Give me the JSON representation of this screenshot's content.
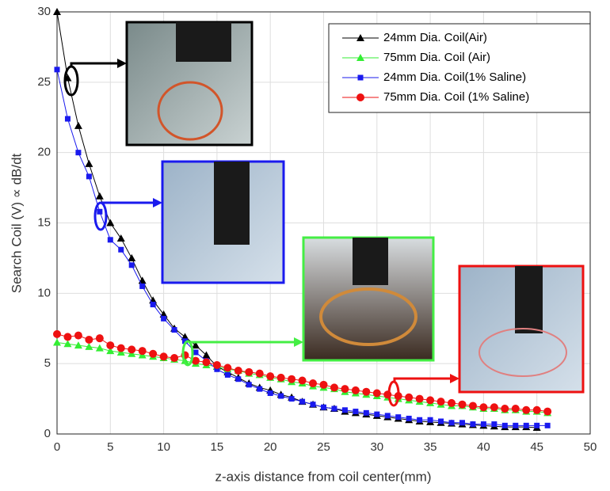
{
  "chart_data": {
    "type": "line",
    "xlabel": "z-axis distance from coil center(mm)",
    "ylabel": "Search Coil (V) ∝ dB/dt",
    "x": [
      0,
      1,
      2,
      3,
      4,
      5,
      6,
      7,
      8,
      9,
      10,
      11,
      12,
      13,
      14,
      15,
      16,
      17,
      18,
      19,
      20,
      21,
      22,
      23,
      24,
      25,
      26,
      27,
      28,
      29,
      30,
      31,
      32,
      33,
      34,
      35,
      36,
      37,
      38,
      39,
      40,
      41,
      42,
      43,
      44,
      45,
      46
    ],
    "series": [
      {
        "name": "24mm Dia. Coil(Air)",
        "color": "#000000",
        "marker": "triangle",
        "values": [
          30,
          25.3,
          21.9,
          19.2,
          16.9,
          15,
          13.9,
          12.5,
          10.9,
          9.5,
          8.5,
          7.5,
          6.9,
          6.3,
          5.6,
          4.8,
          4.4,
          4.0,
          3.6,
          3.3,
          3.1,
          2.8,
          2.6,
          2.3,
          2.1,
          1.9,
          1.8,
          1.6,
          1.5,
          1.4,
          1.3,
          1.2,
          1.1,
          1.0,
          0.9,
          0.85,
          0.8,
          0.75,
          0.7,
          0.65,
          0.6,
          0.55,
          0.5,
          0.5,
          0.5,
          0.45,
          null
        ]
      },
      {
        "name": "75mm Dia. Coil (Air)",
        "color": "#33ee33",
        "marker": "triangle",
        "values": [
          6.5,
          6.4,
          6.3,
          6.2,
          6.1,
          5.9,
          5.8,
          5.7,
          5.6,
          5.5,
          5.4,
          5.3,
          5.2,
          5.0,
          4.9,
          4.8,
          4.6,
          4.5,
          4.3,
          4.2,
          4.0,
          3.9,
          3.7,
          3.6,
          3.4,
          3.3,
          3.2,
          3.0,
          2.9,
          2.8,
          2.7,
          2.6,
          2.5,
          2.4,
          2.3,
          2.2,
          2.1,
          2.0,
          2.0,
          1.9,
          1.8,
          1.8,
          1.7,
          1.7,
          1.6,
          1.6,
          1.5
        ]
      },
      {
        "name": "24mm Dia. Coil(1% Saline)",
        "color": "#1a1aee",
        "marker": "square",
        "values": [
          25.9,
          22.4,
          20,
          18.3,
          15.8,
          13.8,
          13.1,
          12,
          10.5,
          9.2,
          8.2,
          7.4,
          6.6,
          5.8,
          5.2,
          4.6,
          4.2,
          3.9,
          3.5,
          3.2,
          2.9,
          2.7,
          2.5,
          2.3,
          2.1,
          1.9,
          1.8,
          1.7,
          1.6,
          1.5,
          1.4,
          1.3,
          1.2,
          1.1,
          1.0,
          1.0,
          0.9,
          0.8,
          0.8,
          0.7,
          0.7,
          0.7,
          0.6,
          0.6,
          0.6,
          0.6,
          0.6
        ]
      },
      {
        "name": "75mm Dia. Coil (1% Saline)",
        "color": "#ee1111",
        "marker": "circle",
        "values": [
          7.1,
          6.9,
          7.0,
          6.7,
          6.8,
          6.3,
          6.1,
          6.0,
          5.9,
          5.7,
          5.5,
          5.4,
          5.6,
          5.2,
          5.1,
          4.9,
          4.7,
          4.5,
          4.4,
          4.3,
          4.1,
          4.0,
          3.9,
          3.8,
          3.6,
          3.5,
          3.3,
          3.2,
          3.1,
          3.0,
          2.9,
          2.8,
          2.7,
          2.6,
          2.5,
          2.4,
          2.3,
          2.2,
          2.1,
          2.0,
          1.9,
          1.9,
          1.8,
          1.8,
          1.7,
          1.7,
          1.6
        ]
      }
    ],
    "xlim": [
      0,
      50
    ],
    "xticks": [
      0,
      5,
      10,
      15,
      20,
      25,
      30,
      35,
      40,
      45,
      50
    ],
    "ylim": [
      0,
      30
    ],
    "yticks": [
      0,
      5,
      10,
      15,
      20,
      25,
      30
    ],
    "grid": true,
    "legend": "upper right"
  }
}
